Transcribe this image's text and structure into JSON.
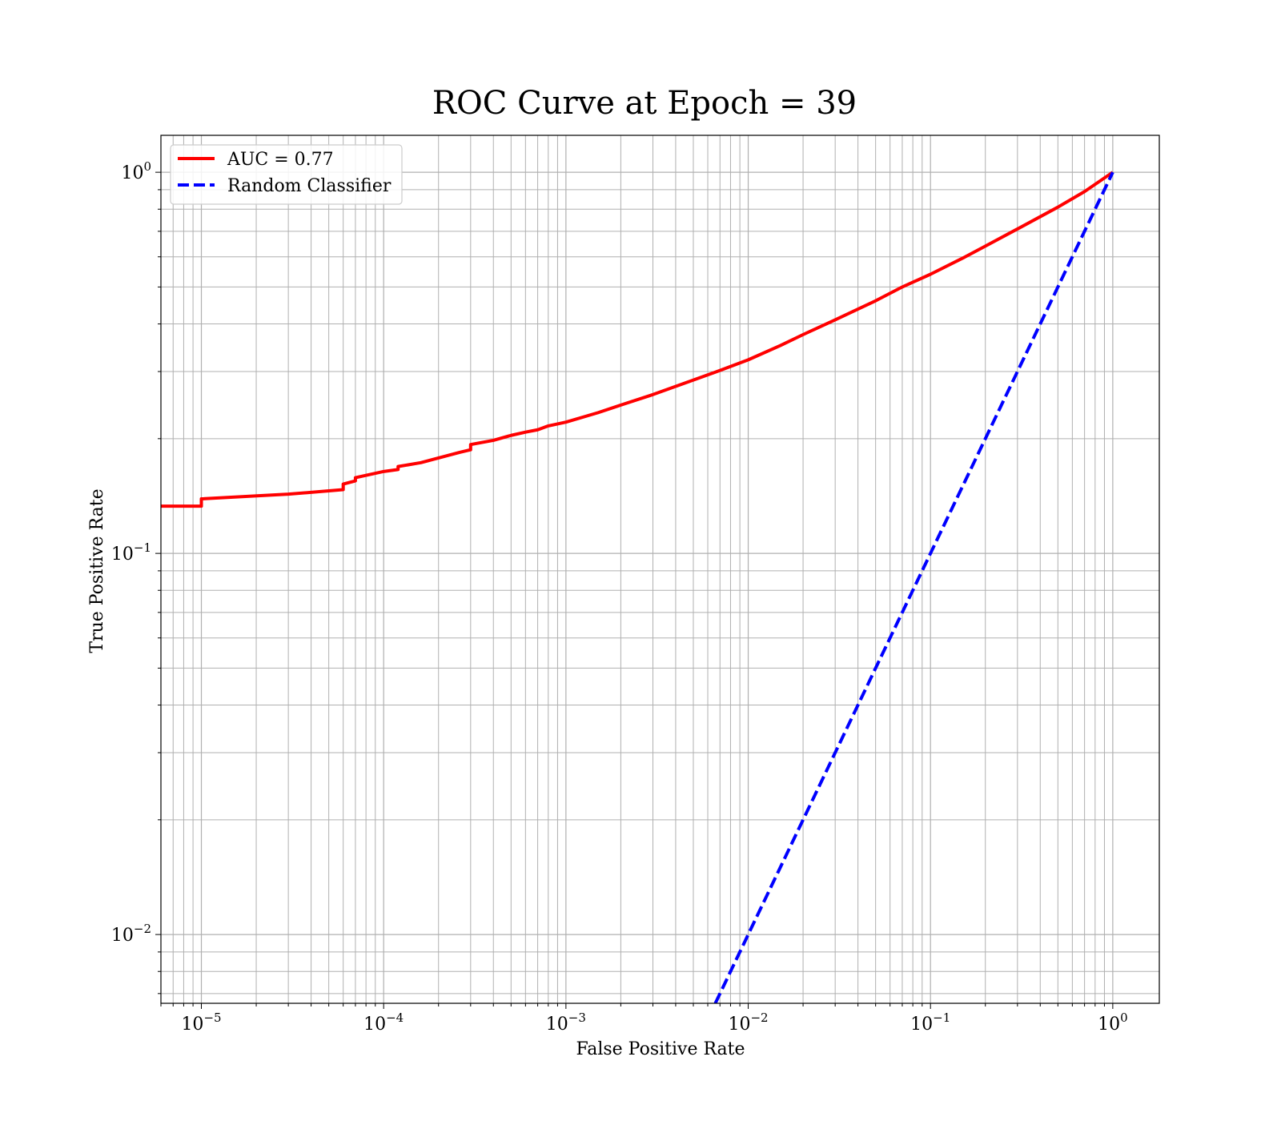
{
  "chart_data": {
    "type": "line",
    "title": "ROC Curve at Epoch = 39",
    "xlabel": "False Positive Rate",
    "ylabel": "True Positive Rate",
    "xscale": "log",
    "yscale": "log",
    "xlim": [
      6e-06,
      1.8
    ],
    "ylim": [
      0.0066,
      1.25
    ],
    "grid": "both major and minor",
    "legend_position": "top-left",
    "x_ticks": [
      {
        "base": "10",
        "exp": "−5"
      },
      {
        "base": "10",
        "exp": "−4"
      },
      {
        "base": "10",
        "exp": "−3"
      },
      {
        "base": "10",
        "exp": "−2"
      },
      {
        "base": "10",
        "exp": "−1"
      },
      {
        "base": "10",
        "exp": "0"
      }
    ],
    "y_ticks": [
      {
        "base": "10",
        "exp": "−2"
      },
      {
        "base": "10",
        "exp": "−1"
      },
      {
        "base": "10",
        "exp": "0"
      }
    ],
    "series": [
      {
        "name": "AUC = 0.77",
        "color": "#ff0000",
        "style": "solid",
        "x": [
          6e-06,
          1e-05,
          1e-05,
          3e-05,
          6e-05,
          6e-05,
          7e-05,
          7e-05,
          0.0001,
          0.00012,
          0.00012,
          0.00016,
          0.0002,
          0.00026,
          0.0003,
          0.0003,
          0.0004,
          0.0005,
          0.0006,
          0.0007,
          0.0008,
          0.001,
          0.0015,
          0.002,
          0.003,
          0.005,
          0.007,
          0.01,
          0.015,
          0.02,
          0.03,
          0.05,
          0.07,
          0.1,
          0.15,
          0.2,
          0.3,
          0.5,
          0.7,
          1.0
        ],
        "y": [
          0.133,
          0.133,
          0.139,
          0.143,
          0.147,
          0.152,
          0.155,
          0.158,
          0.164,
          0.166,
          0.169,
          0.173,
          0.178,
          0.184,
          0.187,
          0.193,
          0.198,
          0.204,
          0.208,
          0.211,
          0.216,
          0.221,
          0.234,
          0.245,
          0.261,
          0.285,
          0.302,
          0.322,
          0.351,
          0.375,
          0.41,
          0.46,
          0.5,
          0.54,
          0.595,
          0.64,
          0.71,
          0.81,
          0.89,
          1.0
        ]
      },
      {
        "name": "Random Classifier",
        "color": "#0000ff",
        "style": "dashed",
        "x": [
          0.0066,
          1.0
        ],
        "y": [
          0.0066,
          1.0
        ]
      }
    ]
  }
}
